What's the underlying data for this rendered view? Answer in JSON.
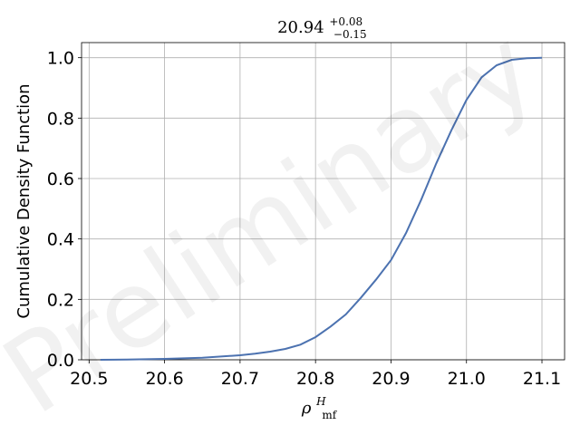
{
  "chart_data": {
    "type": "line",
    "title": "20.94",
    "title_sup": "+0.08",
    "title_sub": "−0.15",
    "xlabel_main": "ρ",
    "xlabel_sup": "H",
    "xlabel_sub": "mf",
    "ylabel": "Cumulative Density Function",
    "watermark": "Preliminary",
    "xlim": [
      20.49,
      21.13
    ],
    "ylim": [
      0,
      1.05
    ],
    "xticks": [
      20.5,
      20.6,
      20.7,
      20.8,
      20.9,
      21.0,
      21.1
    ],
    "xtick_labels": [
      "20.5",
      "20.6",
      "20.7",
      "20.8",
      "20.9",
      "21.0",
      "21.1"
    ],
    "yticks": [
      0.0,
      0.2,
      0.4,
      0.6,
      0.8,
      1.0
    ],
    "ytick_labels": [
      "0.0",
      "0.2",
      "0.4",
      "0.6",
      "0.8",
      "1.0"
    ],
    "grid": true,
    "line_color": "#4c72b0",
    "series": [
      {
        "x": [
          20.515,
          20.55,
          20.6,
          20.65,
          20.7,
          20.72,
          20.74,
          20.76,
          20.78,
          20.8,
          20.82,
          20.84,
          20.86,
          20.88,
          20.9,
          20.92,
          20.94,
          20.96,
          20.98,
          21.0,
          21.02,
          21.04,
          21.06,
          21.08,
          21.1
        ],
        "y": [
          0.0,
          0.001,
          0.003,
          0.007,
          0.015,
          0.02,
          0.027,
          0.036,
          0.05,
          0.075,
          0.11,
          0.15,
          0.205,
          0.265,
          0.33,
          0.42,
          0.53,
          0.65,
          0.76,
          0.86,
          0.935,
          0.975,
          0.993,
          0.998,
          1.0
        ]
      }
    ]
  }
}
